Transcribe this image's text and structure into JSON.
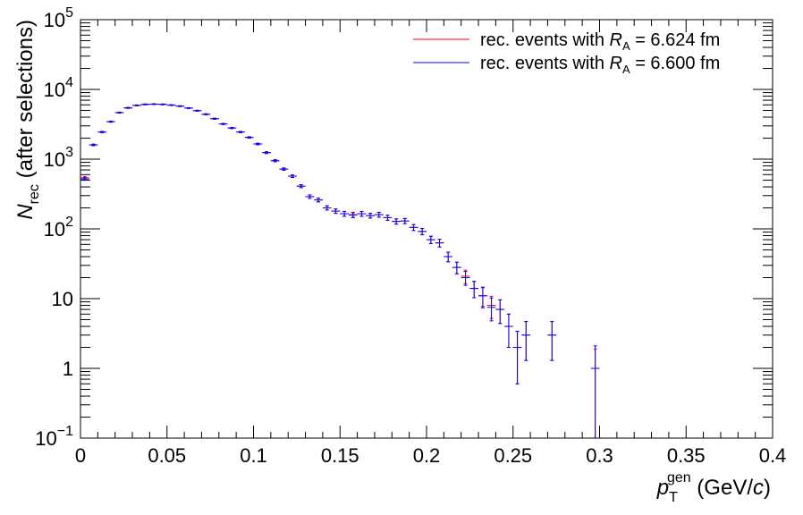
{
  "chart_data": {
    "type": "errorbar-hist",
    "xlabel": [
      "p",
      "T",
      "gen",
      " (GeV/",
      "c",
      ")"
    ],
    "ylabel": [
      "N",
      "rec",
      " (after selections)"
    ],
    "log_y": true,
    "x": [
      0.0025,
      0.0075,
      0.0125,
      0.0175,
      0.0225,
      0.0275,
      0.0325,
      0.0375,
      0.0425,
      0.0475,
      0.0525,
      0.0575,
      0.0625,
      0.0675,
      0.0725,
      0.0775,
      0.0825,
      0.0875,
      0.0925,
      0.0975,
      0.1025,
      0.1075,
      0.1125,
      0.1175,
      0.1225,
      0.1275,
      0.1325,
      0.1375,
      0.1425,
      0.1475,
      0.1525,
      0.1575,
      0.1625,
      0.1675,
      0.1725,
      0.1775,
      0.1825,
      0.1875,
      0.1925,
      0.1975,
      0.2025,
      0.2075,
      0.2125,
      0.2175,
      0.2225,
      0.2275,
      0.2325,
      0.2375,
      0.2425,
      0.2475,
      0.2525,
      0.2575,
      0.2625,
      0.2675,
      0.2725,
      0.2775,
      0.2825,
      0.2875,
      0.2925,
      0.2975
    ],
    "series": [
      {
        "name": [
          "rec. events with ",
          "R",
          "A",
          " = 6.624 fm"
        ],
        "color": "#ff0000",
        "values": [
          540,
          1600,
          2450,
          3450,
          4650,
          5400,
          5900,
          6100,
          6150,
          6100,
          5950,
          5750,
          5400,
          4950,
          4400,
          3800,
          3200,
          2800,
          2450,
          2050,
          1650,
          1240,
          950,
          720,
          570,
          410,
          290,
          260,
          200,
          180,
          165,
          160,
          165,
          155,
          160,
          145,
          128,
          130,
          105,
          92,
          70,
          63,
          40,
          28,
          21,
          14,
          11,
          8,
          7,
          4,
          2,
          3,
          null,
          null,
          3,
          null,
          null,
          null,
          null,
          1
        ],
        "errors": [
          23,
          40,
          49,
          59,
          68,
          73,
          77,
          78,
          78,
          78,
          77,
          76,
          73,
          70,
          66,
          62,
          57,
          53,
          49,
          45,
          41,
          35,
          31,
          27,
          24,
          20,
          17,
          16,
          14,
          13,
          13,
          13,
          13,
          12,
          13,
          12,
          11,
          11,
          10,
          9.6,
          8.4,
          7.9,
          6.3,
          5.3,
          4.6,
          3.7,
          3.3,
          2.8,
          2.6,
          2,
          1.4,
          1.7,
          null,
          null,
          1.7,
          null,
          null,
          null,
          null,
          0.9
        ]
      },
      {
        "name": [
          "rec. events with ",
          "R",
          "A",
          " = 6.600 fm"
        ],
        "color": "#0000ff",
        "values": [
          520,
          1600,
          2450,
          3450,
          4650,
          5450,
          5900,
          6100,
          6150,
          6100,
          5950,
          5750,
          5400,
          4950,
          4400,
          3800,
          3200,
          2800,
          2450,
          2050,
          1650,
          1240,
          950,
          720,
          570,
          410,
          290,
          260,
          200,
          180,
          165,
          158,
          165,
          155,
          160,
          145,
          128,
          130,
          105,
          92,
          70,
          63,
          40,
          28,
          20,
          14,
          11,
          7.5,
          7,
          4,
          2,
          3,
          null,
          null,
          3,
          null,
          null,
          null,
          null,
          1
        ],
        "errors": [
          23,
          40,
          49,
          59,
          68,
          74,
          77,
          78,
          78,
          78,
          77,
          76,
          73,
          70,
          66,
          62,
          57,
          53,
          49,
          45,
          41,
          35,
          31,
          27,
          24,
          20,
          17,
          16,
          14,
          13,
          13,
          13,
          13,
          12,
          13,
          12,
          11,
          11,
          10,
          9.6,
          8.4,
          7.9,
          6.3,
          5.3,
          4.5,
          3.7,
          3.6,
          2.7,
          2.6,
          2,
          1.4,
          1.7,
          null,
          null,
          1.7,
          null,
          null,
          null,
          null,
          1.1
        ]
      }
    ],
    "xlim": [
      0,
      0.4
    ],
    "xticks": [
      0,
      0.05,
      0.1,
      0.15,
      0.2,
      0.25,
      0.3,
      0.35,
      0.4
    ],
    "ylim": [
      0.1,
      100000
    ],
    "yticks": [
      {
        "value": 0.1,
        "label": "10",
        "exponent": "−1"
      },
      1,
      10,
      {
        "value": 100,
        "label": "10",
        "exponent": "2"
      },
      {
        "value": 1000,
        "label": "10",
        "exponent": "3"
      },
      {
        "value": 10000,
        "label": "10",
        "exponent": "4"
      },
      {
        "value": 100000,
        "label": "10",
        "exponent": "5"
      }
    ],
    "legend": "top-right"
  }
}
